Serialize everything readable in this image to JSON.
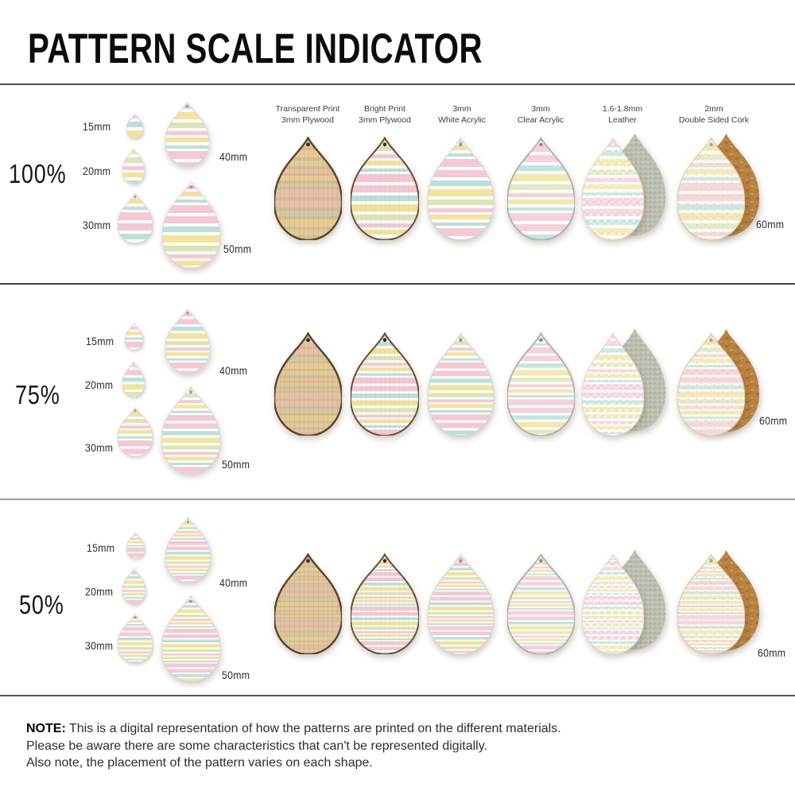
{
  "title": "PATTERN SCALE INDICATOR",
  "rows": [
    {
      "label": "100%",
      "scale": 1
    },
    {
      "label": "75%",
      "scale": 0.75
    },
    {
      "label": "50%",
      "scale": 0.5
    }
  ],
  "columns": [
    {
      "header_line1": "Transparent Print",
      "header_line2": "3mm Plywood",
      "material": "transparent_plywood"
    },
    {
      "header_line1": "Bright Print",
      "header_line2": "3mm Plywood",
      "material": "bright_plywood"
    },
    {
      "header_line1": "3mm",
      "header_line2": "White Acrylic",
      "material": "white_acrylic"
    },
    {
      "header_line1": "3mm",
      "header_line2": "Clear Acrylic",
      "material": "clear_acrylic"
    },
    {
      "header_line1": "1.6-1.8mm",
      "header_line2": "Leather",
      "material": "leather"
    },
    {
      "header_line1": "2mm",
      "header_line2": "Double Sided Cork",
      "material": "cork"
    }
  ],
  "size_labels": {
    "s15": "15mm",
    "s20": "20mm",
    "s30": "30mm",
    "s40": "40mm",
    "s50": "50mm",
    "s60": "60mm"
  },
  "note": {
    "label": "NOTE:",
    "line1": "This is a digital representation of how the patterns are printed on the different materials.",
    "line2": "Please be aware there are some characteristics that can't be represented digitally.",
    "line3": "Also note, the placement of the pattern varies on each shape."
  },
  "stripe_colors": {
    "pink": "#f5c9d3",
    "aqua": "#b7e2da",
    "yellow": "#f3e39b",
    "green": "#dbe6b4",
    "white": "#fdfdfd"
  },
  "stripe_pattern": [
    [
      "pink",
      9
    ],
    [
      "white",
      4
    ],
    [
      "aqua",
      7
    ],
    [
      "white",
      4
    ],
    [
      "yellow",
      9
    ],
    [
      "white",
      4
    ],
    [
      "green",
      7
    ],
    [
      "white",
      4
    ],
    [
      "pink",
      5
    ],
    [
      "white",
      3
    ],
    [
      "yellow",
      6
    ],
    [
      "white",
      4
    ],
    [
      "aqua",
      4
    ],
    [
      "white",
      3
    ],
    [
      "pink",
      10
    ],
    [
      "white",
      4
    ]
  ],
  "materials": {
    "print": {
      "base": "#ffffff",
      "stripe_opacity": 1,
      "edge": "#d8d8d8",
      "edge_w": 1,
      "hole": "#9b9b9b"
    },
    "transparent_plywood": {
      "base": "#dcbd90",
      "stripe_opacity": 0.45,
      "skip_white": true,
      "edge": "#5a4129",
      "edge_w": 2.4,
      "hole": "#352718",
      "texture": "grain"
    },
    "bright_plywood": {
      "base": "#fdfdfd",
      "stripe_opacity": 1,
      "edge": "#6a4b33",
      "edge_w": 2,
      "hole": "#352718",
      "texture": "grain_light"
    },
    "white_acrylic": {
      "base": "#ffffff",
      "stripe_opacity": 1,
      "edge": "#d5d5d5",
      "edge_w": 1.2,
      "hole": "#999999"
    },
    "clear_acrylic": {
      "base": "#fbfbfb",
      "stripe_opacity": 0.85,
      "edge": "#aeaeae",
      "edge_w": 1.8,
      "hole": "#8d8d8d"
    },
    "leather": {
      "base": "#fdfaf4",
      "stripe_opacity": 0.85,
      "edge": "#e0d6c8",
      "edge_w": 1,
      "texture": "pebble",
      "back": "suede"
    },
    "cork": {
      "base": "#f7f2e9",
      "stripe_opacity": 0.65,
      "edge": "#d6c6ae",
      "edge_w": 1,
      "hole": "#b3a48c",
      "texture": "speckle",
      "back": "cork_back"
    }
  },
  "backs": {
    "suede": {
      "fill": "#babdae",
      "texture": "suede_dots"
    },
    "cork_back": {
      "fill": "#b8823f",
      "texture": "cork_grain"
    }
  }
}
